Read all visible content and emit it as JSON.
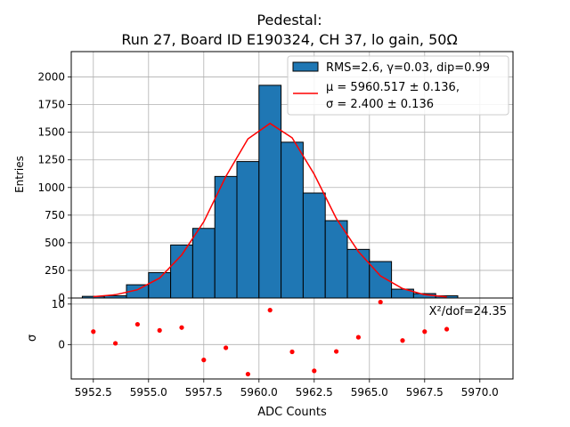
{
  "title_line1": "Pedestal:",
  "title_line2": "Run 27, Board ID E190324, CH 37, lo gain, 50Ω",
  "chart_data": [
    {
      "type": "bar",
      "panel": "main",
      "ylabel": "Entries",
      "xlim": [
        5951.5,
        5971.5
      ],
      "ylim": [
        0,
        2230
      ],
      "x_ticks": [
        5952.5,
        5955.0,
        5957.5,
        5960.0,
        5962.5,
        5965.0,
        5967.5,
        5970.0
      ],
      "x_tick_labels": [
        "5952.5",
        "5955.0",
        "5957.5",
        "5960.0",
        "5962.5",
        "5965.0",
        "5967.5",
        "5970.0"
      ],
      "y_ticks": [
        0,
        250,
        500,
        750,
        1000,
        1250,
        1500,
        1750,
        2000
      ],
      "y_tick_labels": [
        "0",
        "250",
        "500",
        "750",
        "1000",
        "1250",
        "1500",
        "1750",
        "2000"
      ],
      "grid": true,
      "legend_placement": "top-right",
      "series": [
        {
          "name": "RMS=2.6, γ=0.03, dip=0.99",
          "kind": "histogram",
          "color": "#1f77b4",
          "bins": [
            {
              "x0": 5952.0,
              "x1": 5953.0,
              "count": 15
            },
            {
              "x0": 5953.0,
              "x1": 5954.0,
              "count": 20
            },
            {
              "x0": 5954.0,
              "x1": 5955.0,
              "count": 120
            },
            {
              "x0": 5955.0,
              "x1": 5956.0,
              "count": 230
            },
            {
              "x0": 5956.0,
              "x1": 5957.0,
              "count": 480
            },
            {
              "x0": 5957.0,
              "x1": 5958.0,
              "count": 630
            },
            {
              "x0": 5958.0,
              "x1": 5959.0,
              "count": 1100
            },
            {
              "x0": 5959.0,
              "x1": 5960.0,
              "count": 1235
            },
            {
              "x0": 5960.0,
              "x1": 5961.0,
              "count": 1925
            },
            {
              "x0": 5961.0,
              "x1": 5962.0,
              "count": 1410
            },
            {
              "x0": 5962.0,
              "x1": 5963.0,
              "count": 950
            },
            {
              "x0": 5963.0,
              "x1": 5964.0,
              "count": 700
            },
            {
              "x0": 5964.0,
              "x1": 5965.0,
              "count": 440
            },
            {
              "x0": 5965.0,
              "x1": 5966.0,
              "count": 330
            },
            {
              "x0": 5966.0,
              "x1": 5967.0,
              "count": 80
            },
            {
              "x0": 5967.0,
              "x1": 5968.0,
              "count": 40
            },
            {
              "x0": 5968.0,
              "x1": 5969.0,
              "count": 20
            }
          ]
        },
        {
          "name_line1": "μ = 5960.517 ± 0.136,",
          "name_line2": "σ = 2.400 ± 0.136",
          "kind": "line",
          "color": "#ff0000",
          "x": [
            5952.5,
            5953.5,
            5954.5,
            5955.5,
            5956.5,
            5957.5,
            5958.5,
            5959.5,
            5960.5,
            5961.5,
            5962.5,
            5963.5,
            5964.5,
            5965.5,
            5966.5,
            5967.5,
            5968.5
          ],
          "y": [
            12,
            30,
            75,
            180,
            390,
            690,
            1100,
            1440,
            1580,
            1450,
            1120,
            720,
            420,
            200,
            85,
            30,
            10
          ]
        }
      ]
    },
    {
      "type": "scatter",
      "panel": "residuals",
      "ylabel": "σ",
      "xlabel": "ADC Counts",
      "xlim": [
        5951.5,
        5971.5
      ],
      "ylim": [
        -8.5,
        11.5
      ],
      "y_ticks": [
        0,
        10
      ],
      "y_tick_labels": [
        "0",
        "10"
      ],
      "grid": true,
      "annotation": "X²/dof=24.35",
      "series": [
        {
          "kind": "points",
          "color": "#ff0000",
          "x": [
            5952.5,
            5953.5,
            5954.5,
            5955.5,
            5956.5,
            5957.5,
            5958.5,
            5959.5,
            5960.5,
            5961.5,
            5962.5,
            5963.5,
            5964.5,
            5965.5,
            5966.5,
            5967.5,
            5968.5
          ],
          "y": [
            3.2,
            0.3,
            5.0,
            3.5,
            4.2,
            -3.8,
            -0.8,
            -7.3,
            8.5,
            -1.8,
            -6.5,
            -1.7,
            1.8,
            10.5,
            1.0,
            3.2,
            3.8
          ]
        }
      ]
    }
  ]
}
